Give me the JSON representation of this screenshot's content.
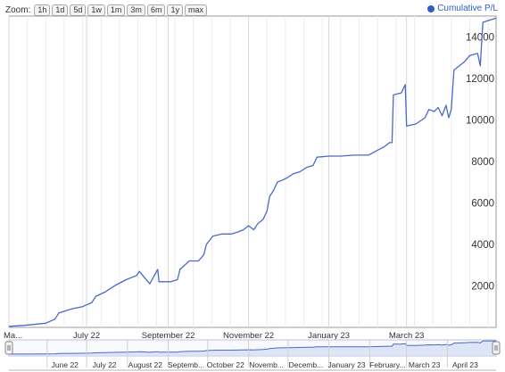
{
  "zoom": {
    "label": "Zoom:",
    "buttons": [
      "1h",
      "1d",
      "5d",
      "1w",
      "1m",
      "3m",
      "6m",
      "1y",
      "max"
    ]
  },
  "legend": {
    "label": "Cumulative P/L",
    "color": "#2f5ec6"
  },
  "colors": {
    "line": "#4a69c9",
    "grid": "#d8d8d8",
    "axis": "#999999"
  },
  "chart_data": {
    "type": "line",
    "title": "",
    "xlabel": "",
    "ylabel": "",
    "ylim": [
      0,
      15000
    ],
    "yticks": [
      2000,
      4000,
      6000,
      8000,
      10000,
      12000,
      14000
    ],
    "xlim": [
      "2022-05-03",
      "2023-05-08"
    ],
    "xticks": [
      {
        "date": "2022-05-03",
        "label": "Ma..."
      },
      {
        "date": "2022-07-01",
        "label": "July 22"
      },
      {
        "date": "2022-09-01",
        "label": "September 22"
      },
      {
        "date": "2022-11-01",
        "label": "November 22"
      },
      {
        "date": "2023-01-01",
        "label": "January 23"
      },
      {
        "date": "2023-03-01",
        "label": "March 23"
      }
    ],
    "grid": true,
    "legend_position": "top-right",
    "series": [
      {
        "name": "Cumulative P/L",
        "points": [
          [
            "2022-05-03",
            50
          ],
          [
            "2022-05-15",
            100
          ],
          [
            "2022-05-31",
            200
          ],
          [
            "2022-06-07",
            400
          ],
          [
            "2022-06-10",
            700
          ],
          [
            "2022-06-20",
            900
          ],
          [
            "2022-06-28",
            1000
          ],
          [
            "2022-07-05",
            1200
          ],
          [
            "2022-07-08",
            1500
          ],
          [
            "2022-07-15",
            1700
          ],
          [
            "2022-07-22",
            2000
          ],
          [
            "2022-07-31",
            2300
          ],
          [
            "2022-08-08",
            2500
          ],
          [
            "2022-08-10",
            2700
          ],
          [
            "2022-08-18",
            2100
          ],
          [
            "2022-08-24",
            2800
          ],
          [
            "2022-08-25",
            2200
          ],
          [
            "2022-09-03",
            2200
          ],
          [
            "2022-09-08",
            2300
          ],
          [
            "2022-09-10",
            2800
          ],
          [
            "2022-09-17",
            3200
          ],
          [
            "2022-09-24",
            3200
          ],
          [
            "2022-09-28",
            3500
          ],
          [
            "2022-09-30",
            4000
          ],
          [
            "2022-10-05",
            4400
          ],
          [
            "2022-10-12",
            4500
          ],
          [
            "2022-10-19",
            4500
          ],
          [
            "2022-10-24",
            4600
          ],
          [
            "2022-10-28",
            4700
          ],
          [
            "2022-11-01",
            4900
          ],
          [
            "2022-11-05",
            4700
          ],
          [
            "2022-11-08",
            5000
          ],
          [
            "2022-11-12",
            5200
          ],
          [
            "2022-11-15",
            5600
          ],
          [
            "2022-11-17",
            6300
          ],
          [
            "2022-11-20",
            6600
          ],
          [
            "2022-11-23",
            7000
          ],
          [
            "2022-11-27",
            7100
          ],
          [
            "2022-11-30",
            7200
          ],
          [
            "2022-12-05",
            7400
          ],
          [
            "2022-12-10",
            7500
          ],
          [
            "2022-12-15",
            7700
          ],
          [
            "2022-12-20",
            7800
          ],
          [
            "2022-12-23",
            8200
          ],
          [
            "2023-01-01",
            8250
          ],
          [
            "2023-01-10",
            8250
          ],
          [
            "2023-01-20",
            8300
          ],
          [
            "2023-01-31",
            8300
          ],
          [
            "2023-02-06",
            8500
          ],
          [
            "2023-02-12",
            8700
          ],
          [
            "2023-02-16",
            8900
          ],
          [
            "2023-02-18",
            8900
          ],
          [
            "2023-02-19",
            11200
          ],
          [
            "2023-02-25",
            11300
          ],
          [
            "2023-02-28",
            11700
          ],
          [
            "2023-03-01",
            9700
          ],
          [
            "2023-03-08",
            9800
          ],
          [
            "2023-03-15",
            10100
          ],
          [
            "2023-03-18",
            10500
          ],
          [
            "2023-03-22",
            10400
          ],
          [
            "2023-03-25",
            10600
          ],
          [
            "2023-03-28",
            10200
          ],
          [
            "2023-03-31",
            10700
          ],
          [
            "2023-04-02",
            10100
          ],
          [
            "2023-04-04",
            10500
          ],
          [
            "2023-04-06",
            12400
          ],
          [
            "2023-04-14",
            12800
          ],
          [
            "2023-04-18",
            13100
          ],
          [
            "2023-04-24",
            13200
          ],
          [
            "2023-04-26",
            12600
          ],
          [
            "2023-04-28",
            14700
          ],
          [
            "2023-05-08",
            14900
          ]
        ]
      }
    ],
    "navigator": {
      "ticks": [
        {
          "date": "2022-06-01",
          "label": "June 22"
        },
        {
          "date": "2022-07-01",
          "label": "July 22"
        },
        {
          "date": "2022-08-01",
          "label": "August 22"
        },
        {
          "date": "2022-09-01",
          "label": "Septemb..."
        },
        {
          "date": "2022-10-01",
          "label": "October 22"
        },
        {
          "date": "2022-11-01",
          "label": "Novemb..."
        },
        {
          "date": "2022-12-01",
          "label": "Decemb..."
        },
        {
          "date": "2023-01-01",
          "label": "January 23"
        },
        {
          "date": "2023-02-01",
          "label": "February..."
        },
        {
          "date": "2023-03-01",
          "label": "March 23"
        },
        {
          "date": "2023-04-01",
          "label": "April 23"
        }
      ]
    }
  }
}
